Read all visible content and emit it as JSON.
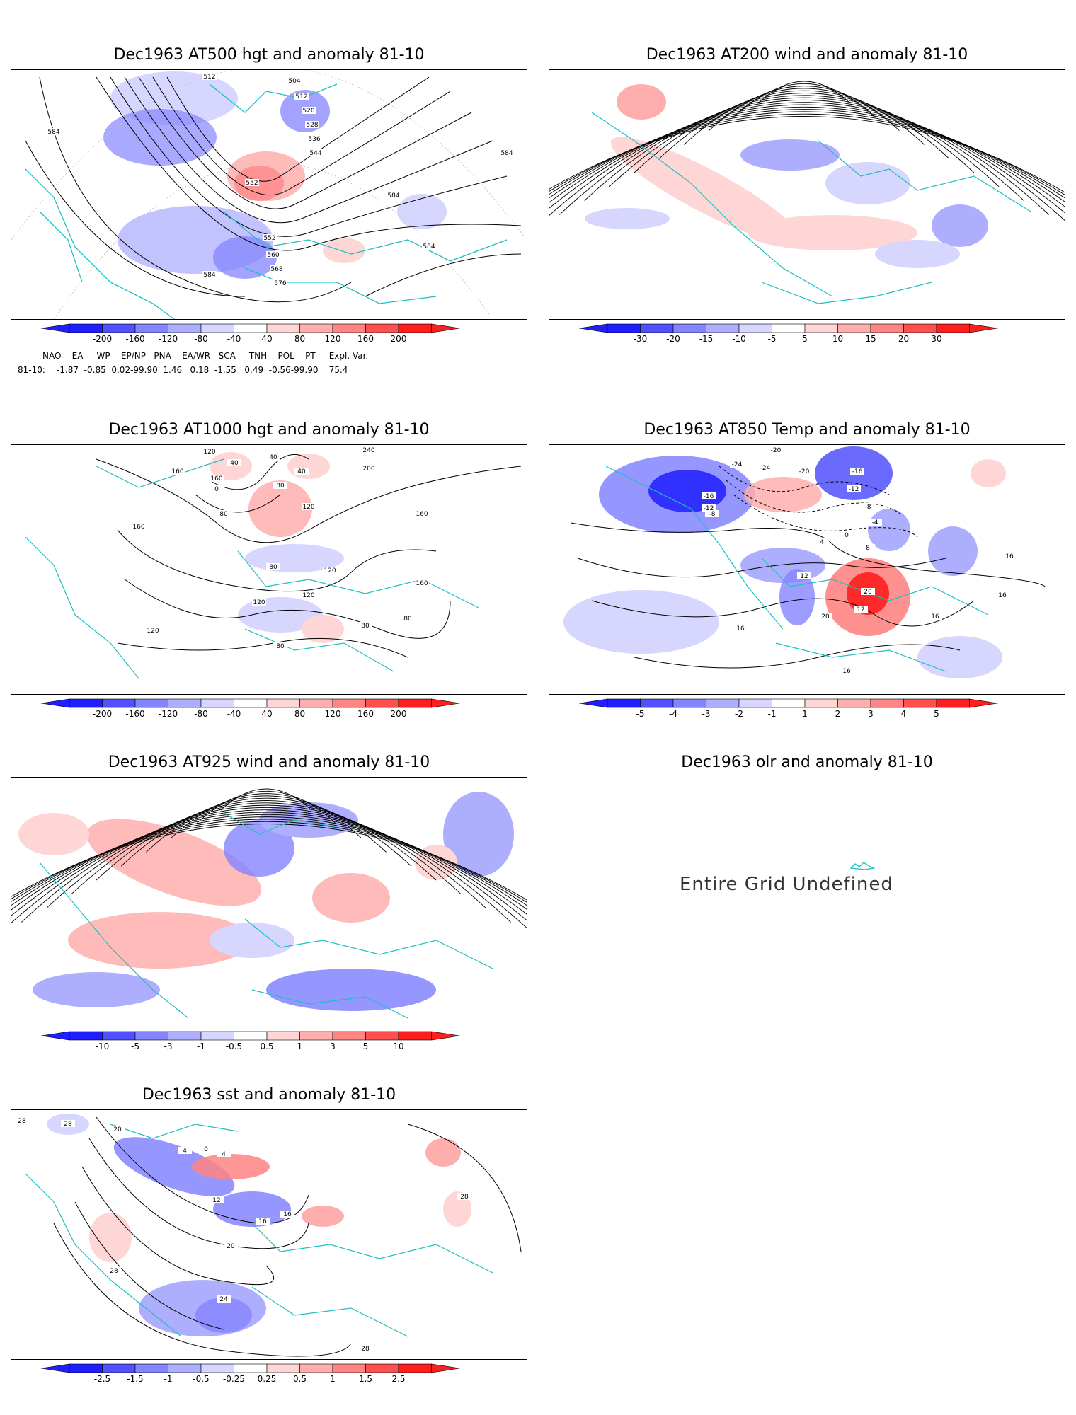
{
  "panels": [
    {
      "id": "p1",
      "title": "Dec1963 AT500 hgt and anomaly 81-10",
      "contour_labels": [
        "512",
        "504",
        "512",
        "520",
        "528",
        "536",
        "544",
        "552",
        "552",
        "560",
        "568",
        "576",
        "584",
        "584",
        "584",
        "584",
        "584"
      ],
      "colorbar": [
        "-200",
        "-160",
        "-120",
        "-80",
        "-40",
        "40",
        "80",
        "120",
        "160",
        "200"
      ]
    },
    {
      "id": "p2",
      "title": "Dec1963 AT200 wind and anomaly 81-10",
      "colorbar": [
        "-30",
        "-20",
        "-15",
        "-10",
        "-5",
        "5",
        "10",
        "15",
        "20",
        "30"
      ]
    },
    {
      "id": "p3",
      "title": "Dec1963 AT1000 hgt and anomaly 81-10",
      "contour_labels": [
        "120",
        "40",
        "160",
        "80",
        "40",
        "40",
        "240",
        "200",
        "0",
        "160",
        "80",
        "120",
        "160",
        "160",
        "80",
        "120",
        "120",
        "120",
        "160",
        "80",
        "120",
        "80",
        "80"
      ],
      "colorbar": [
        "-200",
        "-160",
        "-120",
        "-80",
        "-40",
        "40",
        "80",
        "120",
        "160",
        "200"
      ]
    },
    {
      "id": "p4",
      "title": "Dec1963 AT850 Temp and anomaly 81-10",
      "contour_labels": [
        "-20",
        "-24",
        "-24",
        "-20",
        "-16",
        "-12",
        "-16",
        "-12",
        "-8",
        "-8",
        "-4",
        "0",
        "8",
        "4",
        "16",
        "12",
        "16",
        "16",
        "20",
        "12",
        "20",
        "16",
        "16"
      ],
      "colorbar": [
        "-5",
        "-4",
        "-3",
        "-2",
        "-1",
        "1",
        "2",
        "3",
        "4",
        "5"
      ]
    },
    {
      "id": "p5",
      "title": "Dec1963 AT925 wind and anomaly 81-10",
      "colorbar": [
        "-10",
        "-5",
        "-3",
        "-1",
        "-0.5",
        "0.5",
        "1",
        "3",
        "5",
        "10"
      ]
    },
    {
      "id": "p6",
      "title": "Dec1963 olr and anomaly 81-10",
      "message": "Entire Grid Undefined"
    },
    {
      "id": "p7",
      "title": "Dec1963 sst and anomaly 81-10",
      "contour_labels": [
        "28",
        "28",
        "20",
        "4",
        "0",
        "4",
        "12",
        "16",
        "16",
        "20",
        "28",
        "24",
        "28",
        "28"
      ],
      "colorbar": [
        "-2.5",
        "-1.5",
        "-1",
        "-0.5",
        "-0.25",
        "0.25",
        "0.5",
        "1",
        "1.5",
        "2.5"
      ]
    }
  ],
  "indices": {
    "header": "NAO    EA     WP    EP/NP   PNA    EA/WR   SCA     TNH    POL    PT     Expl. Var.",
    "row_label": "81-10:",
    "row_values": "-1.87  -0.85  0.02-99.90  1.46   0.18  -1.55   0.49  -0.56-99.90    75.4"
  },
  "colors": {
    "coast": "#1fbfbf",
    "neg": [
      "#1e1eff",
      "#5050ff",
      "#8484ff",
      "#aeaeff",
      "#d6d6ff"
    ],
    "pos": [
      "#ffd6d6",
      "#ffaeae",
      "#ff8484",
      "#ff5050",
      "#ff1e1e"
    ]
  }
}
